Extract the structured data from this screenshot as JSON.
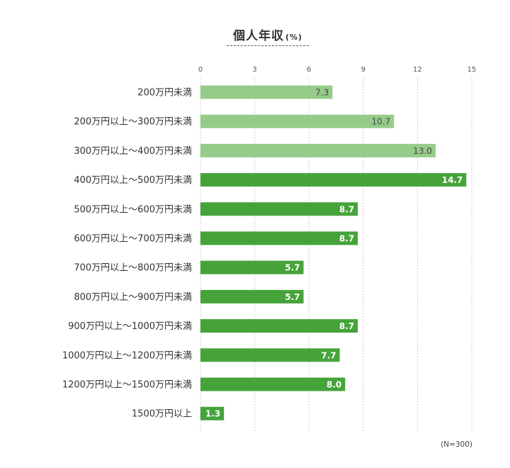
{
  "chart_data": {
    "type": "bar",
    "orientation": "horizontal",
    "title": "個人年収",
    "unit": "(%)",
    "note": "(N=300)",
    "categories": [
      "200万円未満",
      "200万円以上〜300万円未満",
      "300万円以上〜400万円未満",
      "400万円以上〜500万円未満",
      "500万円以上〜600万円未満",
      "600万円以上〜700万円未満",
      "700万円以上〜800万円未満",
      "800万円以上〜900万円未満",
      "900万円以上〜1000万円未満",
      "1000万円以上〜1200万円未満",
      "1200万円以上〜1500万円未満",
      "1500万円以上"
    ],
    "values": [
      7.3,
      10.7,
      13.0,
      14.7,
      8.7,
      8.7,
      5.7,
      5.7,
      8.7,
      7.7,
      8.0,
      1.3
    ],
    "value_labels": [
      "7.3",
      "10.7",
      "13.0",
      "14.7",
      "8.7",
      "8.7",
      "5.7",
      "5.7",
      "8.7",
      "7.7",
      "8.0",
      "1.3"
    ],
    "xlim": [
      0,
      15
    ],
    "xticks": [
      0,
      3,
      6,
      9,
      12,
      15
    ],
    "grid": "vertical-dotted",
    "colors": {
      "light": "#96cc8a",
      "dark": "#45a33a"
    },
    "bar_color_groups": [
      "light",
      "light",
      "light",
      "dark",
      "dark",
      "dark",
      "dark",
      "dark",
      "dark",
      "dark",
      "dark",
      "dark"
    ]
  }
}
